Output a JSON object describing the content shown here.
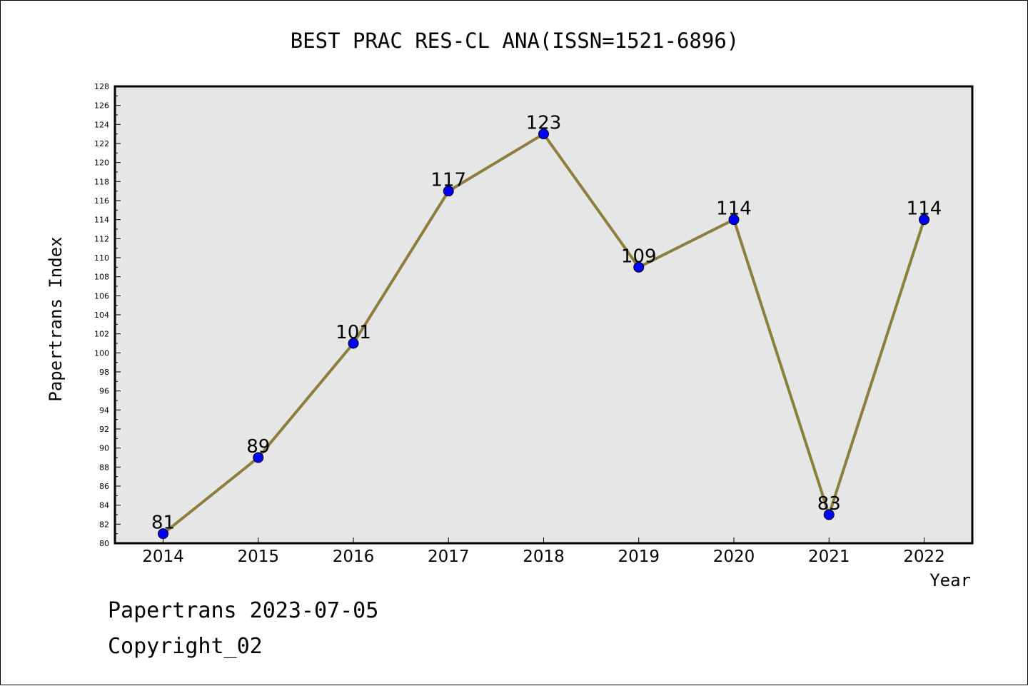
{
  "footer": {
    "line1": "Papertrans 2023-07-05",
    "line2": "Copyright_02"
  },
  "chart_data": {
    "type": "line",
    "title": "BEST PRAC RES-CL ANA(ISSN=1521-6896)",
    "xlabel": "Year",
    "ylabel": "Papertrans Index",
    "categories": [
      "2014",
      "2015",
      "2016",
      "2017",
      "2018",
      "2019",
      "2020",
      "2021",
      "2022"
    ],
    "series": [
      {
        "values": [
          81,
          89,
          101,
          117,
          123,
          109,
          114,
          83,
          114
        ]
      }
    ],
    "data_labels": [
      "81",
      "89",
      "101",
      "117",
      "123",
      "109",
      "114",
      "83",
      "114"
    ],
    "ylim": [
      80,
      128
    ],
    "yticks": [
      "80",
      "82",
      "84",
      "86",
      "88",
      "90",
      "92",
      "94",
      "96",
      "98",
      "100",
      "102",
      "104",
      "106",
      "108",
      "110",
      "112",
      "114",
      "116",
      "118",
      "120",
      "122",
      "124",
      "126",
      "128"
    ],
    "grid": false,
    "legend": "none",
    "colors": {
      "line": "#8c7e3c",
      "marker": "#0000ff",
      "plot_background": "#e6e6e6"
    }
  }
}
